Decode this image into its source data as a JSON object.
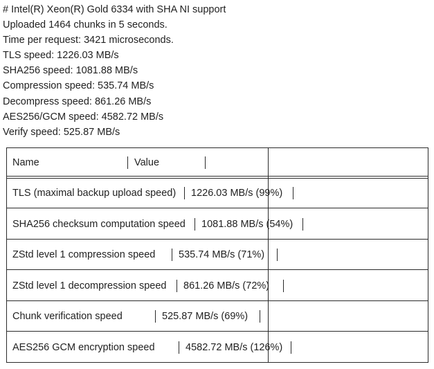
{
  "info": {
    "lines": [
      "# Intel(R) Xeon(R) Gold 6334 with SHA NI support",
      "Uploaded 1464 chunks in 5 seconds.",
      "Time per request: 3421 microseconds.",
      "TLS speed: 1226.03 MB/s",
      "SHA256 speed: 1081.88 MB/s",
      "Compression speed: 535.74 MB/s",
      "Decompress speed: 861.26 MB/s",
      "AES256/GCM speed: 4582.72 MB/s",
      "Verify speed: 525.87 MB/s"
    ]
  },
  "table": {
    "headers": [
      "Name",
      "Value"
    ],
    "rows": [
      {
        "name": "TLS (maximal backup upload speed)",
        "value": "1226.03 MB/s (99%)"
      },
      {
        "name": "SHA256 checksum computation speed",
        "value": "1081.88 MB/s (54%)"
      },
      {
        "name": "ZStd level 1 compression speed",
        "value": "535.74 MB/s (71%)"
      },
      {
        "name": "ZStd level 1 decompression speed",
        "value": "861.26 MB/s (72%)"
      },
      {
        "name": "Chunk verification speed",
        "value": "525.87 MB/s (69%)"
      },
      {
        "name": "AES256 GCM encryption speed",
        "value": "4582.72 MB/s (126%)"
      }
    ]
  }
}
